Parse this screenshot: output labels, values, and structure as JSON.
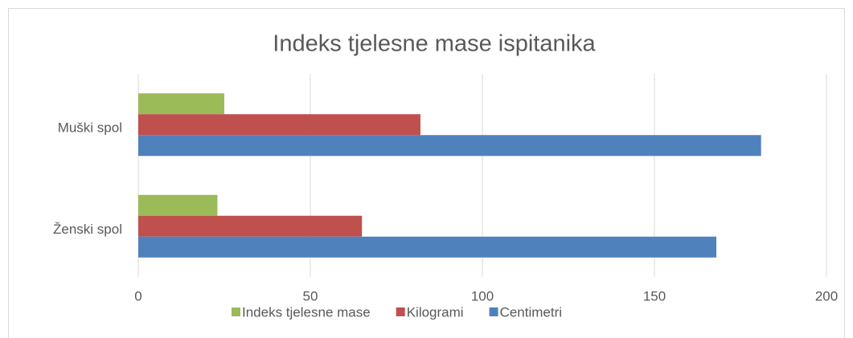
{
  "chart_data": {
    "type": "hbar",
    "title": "Indeks tjelesne mase ispitanika",
    "categories": [
      "Muški spol",
      "Ženski spol"
    ],
    "series": [
      {
        "name": "Indeks tjelesne mase",
        "color": "#9bbb59",
        "values": [
          25,
          23
        ]
      },
      {
        "name": "Kilogrami",
        "color": "#c0504d",
        "values": [
          82,
          65
        ]
      },
      {
        "name": "Centimetri",
        "color": "#4f81bd",
        "values": [
          181,
          168
        ]
      }
    ],
    "xlim": [
      0,
      200
    ],
    "xticks": [
      0,
      50,
      100,
      150,
      200
    ],
    "grid": true,
    "legend": "bottom"
  }
}
